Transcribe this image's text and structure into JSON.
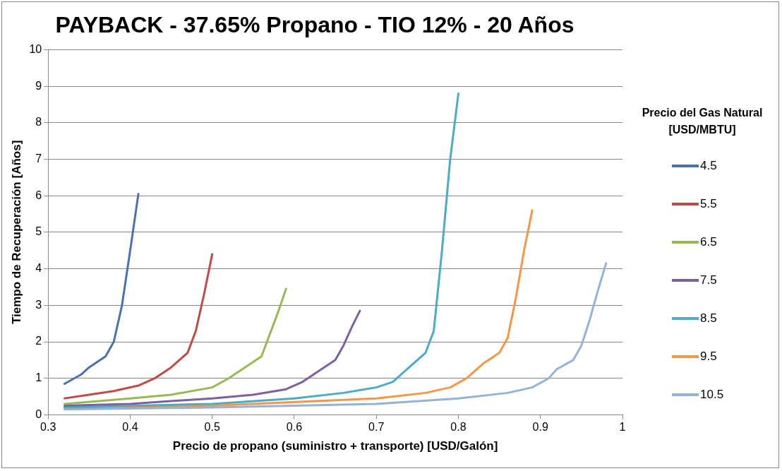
{
  "chart_data": {
    "type": "line",
    "title": "PAYBACK - 37.65% Propano - TIO 12% - 20 Años",
    "xlabel": "Precio de propano (suministro + transporte) [USD/Galón]",
    "ylabel": "Tiempo de Recuperación [Años]",
    "legend_title": "Precio del Gas Natural [USD/MBTU]",
    "legend": "right",
    "grid": "y",
    "marker": "none",
    "line_style": "solid",
    "xlim": [
      0.3,
      1
    ],
    "xticks": [
      0.3,
      0.4,
      0.5,
      0.6,
      0.7,
      0.8,
      0.9,
      1
    ],
    "ylim": [
      0,
      10
    ],
    "yticks": [
      0,
      1,
      2,
      3,
      4,
      5,
      6,
      7,
      8,
      9,
      10
    ],
    "series": [
      {
        "name": "4.5",
        "color": "#4a72b0",
        "x": [
          0.32,
          0.34,
          0.35,
          0.37,
          0.38,
          0.39,
          0.4,
          0.41
        ],
        "values": [
          0.85,
          1.1,
          1.3,
          1.6,
          2.0,
          3.0,
          4.5,
          6.05
        ]
      },
      {
        "name": "5.5",
        "color": "#be4b48",
        "x": [
          0.32,
          0.35,
          0.38,
          0.41,
          0.43,
          0.45,
          0.47,
          0.48,
          0.49,
          0.5
        ],
        "values": [
          0.45,
          0.55,
          0.65,
          0.8,
          1.0,
          1.3,
          1.7,
          2.3,
          3.3,
          4.4
        ]
      },
      {
        "name": "6.5",
        "color": "#98b954",
        "x": [
          0.32,
          0.4,
          0.45,
          0.5,
          0.52,
          0.54,
          0.56,
          0.57,
          0.58,
          0.59
        ],
        "values": [
          0.3,
          0.45,
          0.55,
          0.75,
          1.0,
          1.3,
          1.6,
          2.2,
          2.8,
          3.45
        ]
      },
      {
        "name": "7.5",
        "color": "#7d60a0",
        "x": [
          0.32,
          0.4,
          0.5,
          0.55,
          0.59,
          0.61,
          0.63,
          0.65,
          0.66,
          0.67,
          0.68
        ],
        "values": [
          0.25,
          0.3,
          0.45,
          0.55,
          0.7,
          0.9,
          1.2,
          1.5,
          1.9,
          2.4,
          2.85
        ]
      },
      {
        "name": "8.5",
        "color": "#4aacc6",
        "x": [
          0.32,
          0.5,
          0.6,
          0.66,
          0.7,
          0.72,
          0.74,
          0.76,
          0.77,
          0.78,
          0.79,
          0.8
        ],
        "values": [
          0.2,
          0.3,
          0.45,
          0.6,
          0.75,
          0.9,
          1.3,
          1.7,
          2.3,
          4.5,
          7.0,
          8.8
        ]
      },
      {
        "name": "9.5",
        "color": "#f79646",
        "x": [
          0.32,
          0.5,
          0.7,
          0.76,
          0.79,
          0.81,
          0.83,
          0.85,
          0.86,
          0.87,
          0.88,
          0.89
        ],
        "values": [
          0.2,
          0.25,
          0.45,
          0.6,
          0.75,
          1.0,
          1.4,
          1.7,
          2.1,
          3.2,
          4.5,
          5.6
        ]
      },
      {
        "name": "10.5",
        "color": "#95b3d7",
        "x": [
          0.32,
          0.5,
          0.7,
          0.8,
          0.86,
          0.89,
          0.91,
          0.92,
          0.94,
          0.95,
          0.96,
          0.97,
          0.98
        ],
        "values": [
          0.15,
          0.2,
          0.3,
          0.45,
          0.6,
          0.75,
          1.0,
          1.25,
          1.5,
          1.9,
          2.6,
          3.4,
          4.15
        ]
      }
    ]
  }
}
